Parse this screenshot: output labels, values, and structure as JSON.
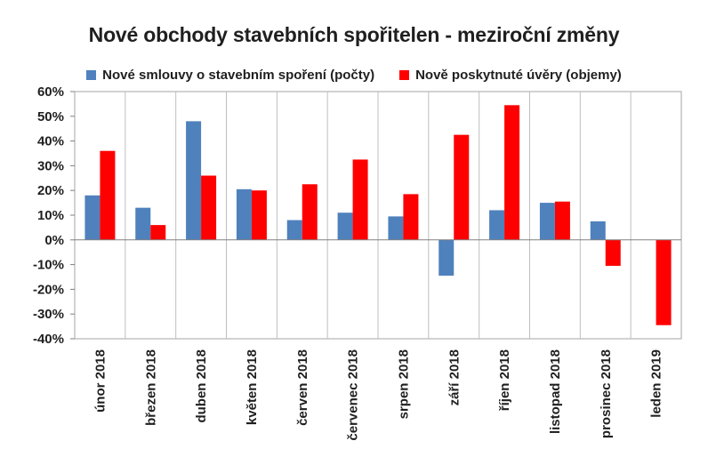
{
  "chart_data": {
    "type": "bar",
    "title": "Nové obchody stavebních spořitelen - meziroční změny",
    "categories": [
      "únor 2018",
      "březen 2018",
      "duben 2018",
      "květen 2018",
      "červen 2018",
      "červenec 2018",
      "srpen 2018",
      "září 2018",
      "říjen 2018",
      "listopad 2018",
      "prosinec 2018",
      "leden 2019"
    ],
    "series": [
      {
        "name": "Nové smlouvy o stavebním spoření (počty)",
        "color": "#4f81bd",
        "values": [
          18,
          13,
          48,
          20.5,
          8,
          11,
          9.5,
          -14.5,
          12,
          15,
          7.5,
          0
        ]
      },
      {
        "name": "Nově poskytnuté úvěry (objemy)",
        "color": "#ff0000",
        "values": [
          36,
          6,
          26,
          20,
          22.5,
          32.5,
          18.5,
          42.5,
          54.5,
          15.5,
          -10.5,
          -34.5
        ]
      }
    ],
    "ylim": [
      -40,
      60
    ],
    "yticks": [
      -40,
      -30,
      -20,
      -10,
      0,
      10,
      20,
      30,
      40,
      50,
      60
    ],
    "ytick_labels": [
      "-40%",
      "-30%",
      "-20%",
      "-10%",
      "0%",
      "10%",
      "20%",
      "30%",
      "40%",
      "50%",
      "60%"
    ],
    "grid": "vertical",
    "legend": "top"
  }
}
